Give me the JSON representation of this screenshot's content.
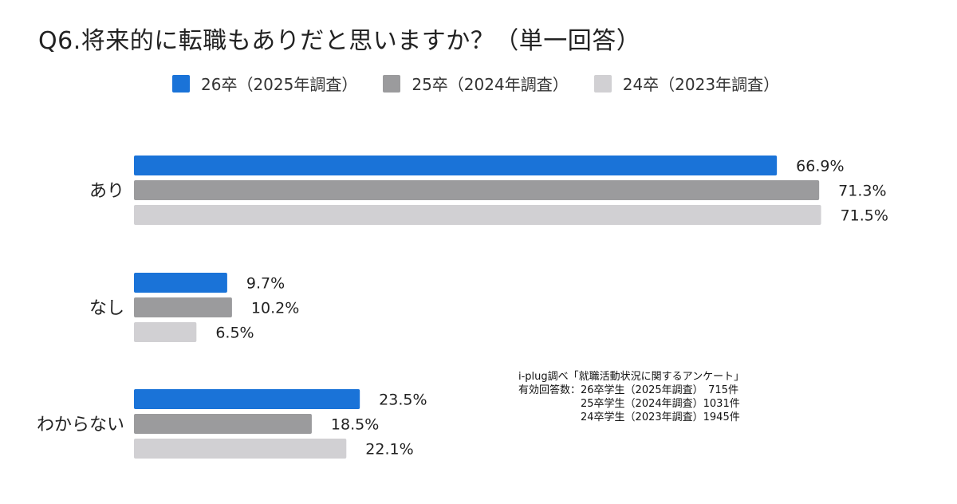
{
  "title": "Q6.将来的に転職もありだと思いますか？（単一回答）",
  "legend": [
    {
      "label": "26卒（2025年調査）",
      "color": "#1a73d8"
    },
    {
      "label": "25卒（2024年調査）",
      "color": "#9b9b9d"
    },
    {
      "label": "24卒（2023年調査）",
      "color": "#d1d0d3"
    }
  ],
  "chart_data": {
    "type": "bar",
    "orientation": "horizontal",
    "title": "Q6.将来的に転職もありだと思いますか？（単一回答）",
    "categories": [
      "あり",
      "なし",
      "わからない"
    ],
    "series": [
      {
        "name": "26卒（2025年調査）",
        "values": [
          66.9,
          9.7,
          23.5
        ],
        "labels": [
          "66.9%",
          "9.7%",
          "23.5%"
        ],
        "color": "#1a73d8"
      },
      {
        "name": "25卒（2024年調査）",
        "values": [
          71.3,
          10.2,
          18.5
        ],
        "labels": [
          "71.3%",
          "10.2%",
          "18.5%"
        ],
        "color": "#9b9b9d"
      },
      {
        "name": "24卒（2023年調査）",
        "values": [
          71.5,
          6.5,
          22.1
        ],
        "labels": [
          "71.5%",
          "6.5%",
          "22.1%"
        ],
        "color": "#d1d0d3"
      }
    ],
    "unit": "%",
    "xlim": [
      0,
      100
    ],
    "grid": false,
    "legend_position": "top"
  },
  "note": {
    "line1": "i-plug調べ「就職活動状況に関するアンケート」",
    "line2": "有効回答数：26卒学生（2025年調査）　715件",
    "line3": "　　　　　　25卒学生（2024年調査）1031件",
    "line4": "　　　　　　24卒学生（2023年調査）1945件"
  }
}
